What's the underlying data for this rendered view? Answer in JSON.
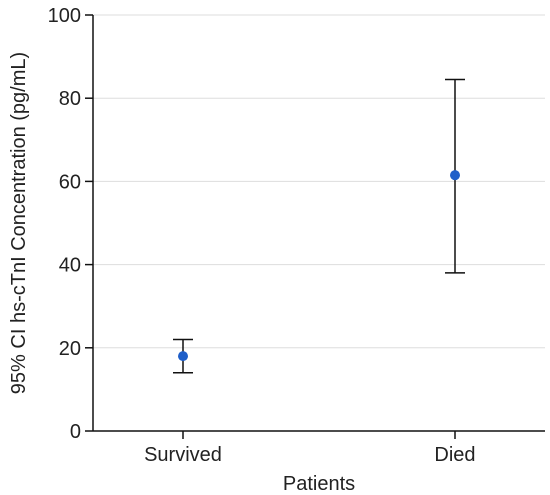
{
  "chart_data": {
    "type": "scatter",
    "title": "",
    "xlabel": "Patients",
    "ylabel": "95% CI hs-cTnI Concentration (pg/mL)",
    "categories": [
      "Survived",
      "Died"
    ],
    "points": [
      {
        "category": "Survived",
        "value": 18,
        "ci_low": 14,
        "ci_high": 22
      },
      {
        "category": "Died",
        "value": 61.5,
        "ci_low": 38,
        "ci_high": 84.5
      }
    ],
    "ylim": [
      0,
      100
    ],
    "yticks": [
      "0",
      "20",
      "40",
      "60",
      "80",
      "100"
    ],
    "grid": true,
    "colors": {
      "point": "#1f5fc9",
      "errorbar": "#111111",
      "grid": "#dddddd",
      "axis": "#111111"
    }
  }
}
